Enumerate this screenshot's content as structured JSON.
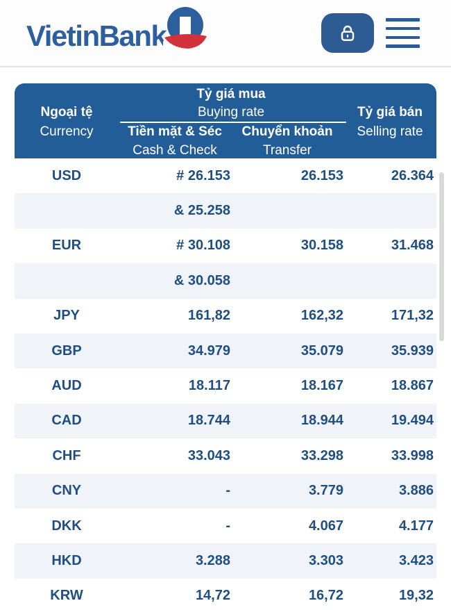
{
  "header": {
    "logo_text": "VietinBank",
    "icons": {
      "emblem": "vietinbank-emblem",
      "lock": "lock",
      "menu": "hamburger-menu"
    }
  },
  "table": {
    "head": {
      "currency_vi": "Ngoại tệ",
      "currency_en": "Currency",
      "buying_vi": "Tỷ giá mua",
      "buying_en": "Buying rate",
      "cash_vi": "Tiền mặt & Séc",
      "cash_en": "Cash & Check",
      "transfer_vi": "Chuyển khoản",
      "transfer_en": "Transfer",
      "selling_vi": "Tỷ giá bán",
      "selling_en": "Selling rate"
    },
    "rows": [
      {
        "code": "USD",
        "cash": "# 26.153",
        "transfer": "26.153",
        "selling": "26.364",
        "shade": false
      },
      {
        "code": "",
        "cash": "& 25.258",
        "transfer": "",
        "selling": "",
        "shade": true
      },
      {
        "code": "EUR",
        "cash": "# 30.108",
        "transfer": "30.158",
        "selling": "31.468",
        "shade": false
      },
      {
        "code": "",
        "cash": "& 30.058",
        "transfer": "",
        "selling": "",
        "shade": true
      },
      {
        "code": "JPY",
        "cash": "161,82",
        "transfer": "162,32",
        "selling": "171,32",
        "shade": false
      },
      {
        "code": "GBP",
        "cash": "34.979",
        "transfer": "35.079",
        "selling": "35.939",
        "shade": true
      },
      {
        "code": "AUD",
        "cash": "18.117",
        "transfer": "18.167",
        "selling": "18.867",
        "shade": false
      },
      {
        "code": "CAD",
        "cash": "18.744",
        "transfer": "18.944",
        "selling": "19.494",
        "shade": true
      },
      {
        "code": "CHF",
        "cash": "33.043",
        "transfer": "33.298",
        "selling": "33.998",
        "shade": false
      },
      {
        "code": "CNY",
        "cash": "-",
        "transfer": "3.779",
        "selling": "3.886",
        "shade": true
      },
      {
        "code": "DKK",
        "cash": "-",
        "transfer": "4.067",
        "selling": "4.177",
        "shade": false
      },
      {
        "code": "HKD",
        "cash": "3.288",
        "transfer": "3.303",
        "selling": "3.423",
        "shade": true
      },
      {
        "code": "KRW",
        "cash": "14,72",
        "transfer": "16,72",
        "selling": "19,32",
        "shade": false
      }
    ]
  },
  "colors": {
    "brand_blue": "#2c5f9e",
    "brand_red": "#d2323c",
    "header_blue": "#235d98",
    "icon_blue": "#2c5c93",
    "text_navy": "#1f4e80",
    "row_shade": "#f0f4f8",
    "divider": "#e4e2e2",
    "scrollbar": "#d9d9d9"
  }
}
